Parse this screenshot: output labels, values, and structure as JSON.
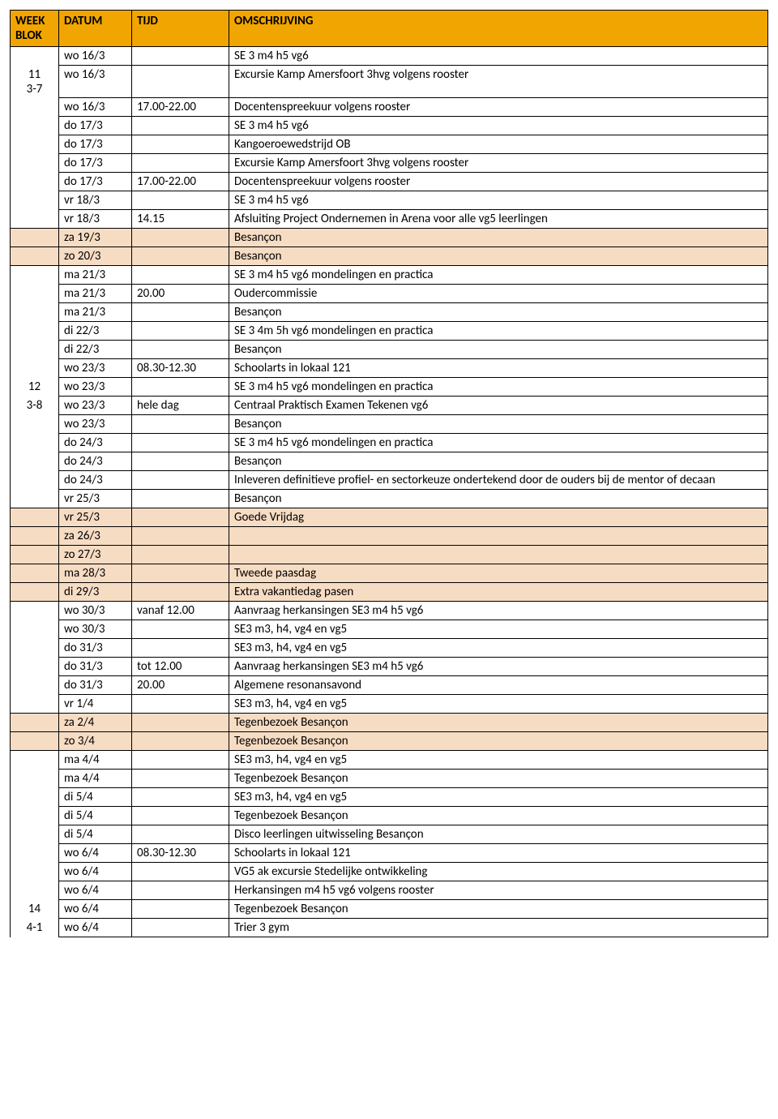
{
  "headers": {
    "week_blok_line1": "WEEK",
    "week_blok_line2": "BLOK",
    "datum": "DATUM",
    "tijd": "TIJD",
    "omschrijving": "OMSCHRIJVING"
  },
  "rows": [
    {
      "weekblok": "",
      "weekblok_rowspan": 1,
      "weekblok_cls": "topborder",
      "datum": "wo 16/3",
      "tijd": "",
      "omschrijving": "SE 3 m4 h5 vg6"
    },
    {
      "weekblok": "11\n3-7",
      "weekblok_rowspan": 1,
      "datum": "wo 16/3",
      "tijd": "",
      "omschrijving": "Excursie Kamp Amersfoort 3hvg volgens rooster"
    },
    {
      "weekblok": "",
      "weekblok_rowspan": 7,
      "datum": "wo 16/3",
      "tijd": "17.00-22.00",
      "omschrijving": "Docentenspreekuur volgens rooster"
    },
    {
      "datum": "do 17/3",
      "tijd": "",
      "omschrijving": "SE 3 m4 h5 vg6"
    },
    {
      "datum": "do 17/3",
      "tijd": "",
      "omschrijving": "Kangoeroewedstrijd OB"
    },
    {
      "datum": "do 17/3",
      "tijd": "",
      "omschrijving": "Excursie Kamp Amersfoort 3hvg volgens rooster"
    },
    {
      "datum": "do 17/3",
      "tijd": "17.00-22.00",
      "omschrijving": "Docentenspreekuur volgens rooster"
    },
    {
      "datum": "vr 18/3",
      "tijd": "",
      "omschrijving": "SE 3 m4 h5 vg6"
    },
    {
      "datum": "vr 18/3",
      "tijd": "14.15",
      "omschrijving": "Afsluiting Project Ondernemen in Arena voor alle vg5 leerlingen"
    },
    {
      "hl": true,
      "weekblok": "",
      "weekblok_rowspan": 1,
      "weekblok_cls": "topborder",
      "datum": "za 19/3",
      "tijd": "",
      "omschrijving": "Besançon"
    },
    {
      "hl": true,
      "weekblok": "",
      "weekblok_rowspan": 1,
      "weekblok_cls": "topborder",
      "datum": "zo 20/3",
      "tijd": "",
      "omschrijving": "Besançon"
    },
    {
      "weekblok": "",
      "weekblok_rowspan": 6,
      "weekblok_cls": "topborder",
      "datum": "ma 21/3",
      "tijd": "",
      "omschrijving": "SE 3 m4 h5 vg6 mondelingen en practica"
    },
    {
      "datum": "ma 21/3",
      "tijd": "20.00",
      "omschrijving": "Oudercommissie"
    },
    {
      "datum": "ma 21/3",
      "tijd": "",
      "omschrijving": "Besançon"
    },
    {
      "datum": "di 22/3",
      "tijd": "",
      "omschrijving": "SE 3 4m 5h vg6 mondelingen en practica"
    },
    {
      "datum": "di 22/3",
      "tijd": "",
      "omschrijving": "Besançon"
    },
    {
      "datum": "wo 23/3",
      "tijd": "08.30-12.30",
      "omschrijving": "Schoolarts in lokaal 121"
    },
    {
      "weekblok": "12",
      "weekblok_rowspan": 1,
      "datum": "wo 23/3",
      "tijd": "",
      "omschrijving": "SE 3 m4 h5 vg6 mondelingen en practica"
    },
    {
      "weekblok": "3-8",
      "weekblok_rowspan": 1,
      "datum": "wo 23/3",
      "tijd": "hele dag",
      "omschrijving": "Centraal Praktisch Examen Tekenen vg6"
    },
    {
      "weekblok": "",
      "weekblok_rowspan": 5,
      "datum": "wo 23/3",
      "tijd": "",
      "omschrijving": "Besançon"
    },
    {
      "datum": "do 24/3",
      "tijd": "",
      "omschrijving": "SE 3 m4 h5 vg6 mondelingen en practica"
    },
    {
      "datum": "do 24/3",
      "tijd": "",
      "omschrijving": "Besançon"
    },
    {
      "datum": "do 24/3",
      "tijd": "",
      "omschrijving": "Inleveren definitieve profiel- en sectorkeuze ondertekend door de ouders bij de mentor of decaan"
    },
    {
      "datum": "vr 25/3",
      "tijd": "",
      "omschrijving": "Besançon"
    },
    {
      "hl": true,
      "weekblok": "",
      "weekblok_rowspan": 1,
      "weekblok_cls": "topborder",
      "datum": "vr 25/3",
      "tijd": "",
      "omschrijving": "Goede Vrijdag"
    },
    {
      "hl": true,
      "weekblok": "",
      "weekblok_rowspan": 1,
      "weekblok_cls": "topborder",
      "datum": "za 26/3",
      "tijd": "",
      "omschrijving": ""
    },
    {
      "hl": true,
      "weekblok": "",
      "weekblok_rowspan": 1,
      "weekblok_cls": "topborder",
      "datum": "zo 27/3",
      "tijd": "",
      "omschrijving": ""
    },
    {
      "hl": true,
      "weekblok": "",
      "weekblok_rowspan": 1,
      "weekblok_cls": "topborder",
      "datum": "ma 28/3",
      "tijd": "",
      "omschrijving": "Tweede paasdag"
    },
    {
      "hl": true,
      "weekblok": "",
      "weekblok_rowspan": 1,
      "weekblok_cls": "topborder",
      "datum": "di 29/3",
      "tijd": "",
      "omschrijving": "Extra vakantiedag pasen"
    },
    {
      "weekblok": "",
      "weekblok_rowspan": 6,
      "weekblok_cls": "topborder",
      "datum": "wo 30/3",
      "tijd": "vanaf 12.00",
      "omschrijving": "Aanvraag herkansingen SE3 m4 h5 vg6"
    },
    {
      "datum": "wo 30/3",
      "tijd": "",
      "omschrijving": "SE3 m3, h4, vg4 en vg5"
    },
    {
      "datum": "do 31/3",
      "tijd": "",
      "omschrijving": "SE3 m3, h4, vg4 en vg5"
    },
    {
      "datum": "do 31/3",
      "tijd": "tot 12.00",
      "omschrijving": "Aanvraag herkansingen SE3 m4 h5 vg6"
    },
    {
      "datum": "do 31/3",
      "tijd": "20.00",
      "omschrijving": "Algemene resonansavond"
    },
    {
      "datum": "vr 1/4",
      "tijd": "",
      "omschrijving": "SE3 m3, h4, vg4 en vg5"
    },
    {
      "hl": true,
      "weekblok": "",
      "weekblok_rowspan": 1,
      "weekblok_cls": "topborder",
      "datum": "za 2/4",
      "tijd": "",
      "omschrijving": "Tegenbezoek Besançon"
    },
    {
      "hl": true,
      "weekblok": "",
      "weekblok_rowspan": 1,
      "weekblok_cls": "topborder",
      "datum": "zo 3/4",
      "tijd": "",
      "omschrijving": "Tegenbezoek Besançon"
    },
    {
      "weekblok": "",
      "weekblok_rowspan": 8,
      "weekblok_cls": "topborder",
      "datum": "ma 4/4",
      "tijd": "",
      "omschrijving": "SE3 m3, h4, vg4 en vg5"
    },
    {
      "datum": "ma 4/4",
      "tijd": "",
      "omschrijving": "Tegenbezoek Besançon"
    },
    {
      "datum": "di 5/4",
      "tijd": "",
      "omschrijving": "SE3 m3, h4, vg4 en vg5"
    },
    {
      "datum": "di 5/4",
      "tijd": "",
      "omschrijving": "Tegenbezoek Besançon"
    },
    {
      "datum": "di 5/4",
      "tijd": "",
      "omschrijving": "Disco leerlingen uitwisseling Besançon"
    },
    {
      "datum": "wo 6/4",
      "tijd": "08.30-12.30",
      "omschrijving": "Schoolarts in lokaal 121"
    },
    {
      "datum": "wo 6/4",
      "tijd": "",
      "omschrijving": "VG5 ak excursie Stedelijke ontwikkeling"
    },
    {
      "datum": "wo 6/4",
      "tijd": "",
      "omschrijving": "Herkansingen  m4 h5 vg6 volgens rooster"
    },
    {
      "weekblok": "14",
      "weekblok_rowspan": 1,
      "datum": "wo 6/4",
      "tijd": "",
      "omschrijving": "Tegenbezoek Besançon"
    },
    {
      "weekblok": "4-1",
      "weekblok_rowspan": 1,
      "datum": "wo 6/4",
      "tijd": "",
      "omschrijving": "Trier 3 gym"
    }
  ]
}
